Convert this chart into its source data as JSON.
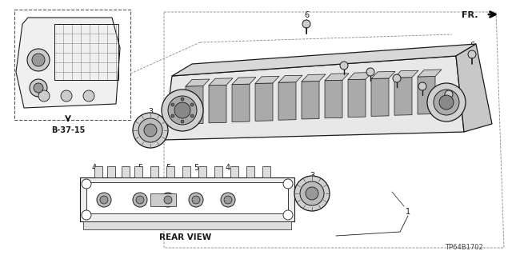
{
  "background_color": "#ffffff",
  "line_color": "#1a1a1a",
  "part_number": "TP64B1702",
  "fr_label": "FR.",
  "ref_label": "B-37-15",
  "rear_view_label": "REAR VIEW",
  "fig_w": 6.4,
  "fig_h": 3.19,
  "dpi": 100
}
